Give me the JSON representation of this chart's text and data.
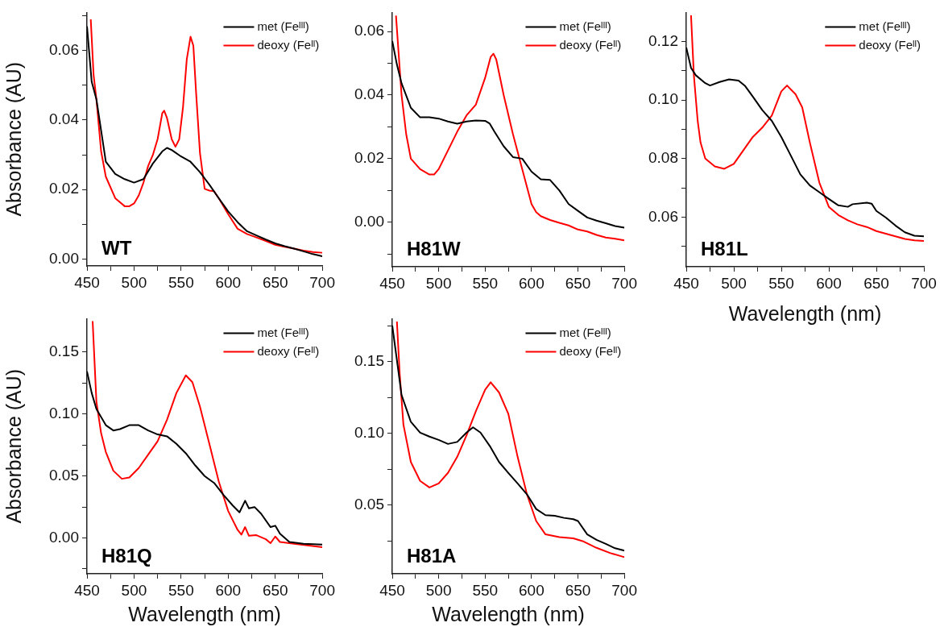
{
  "chart_data": [
    {
      "type": "line",
      "ylabel": "Absorbance (AU)",
      "annotations": [
        "WT"
      ],
      "legend": "top right",
      "xlim": [
        450,
        700
      ],
      "xticks": [
        450,
        {
          "value": 475,
          "label": null
        },
        500,
        {
          "value": 525,
          "label": null
        },
        550,
        {
          "value": 575,
          "label": null
        },
        600,
        {
          "value": 625,
          "label": null
        },
        650,
        {
          "value": 675,
          "label": null
        },
        700
      ],
      "ylim": [
        -0.002,
        0.071
      ],
      "yticks": [
        {
          "value": 0,
          "label": "0.00"
        },
        {
          "value": 0.01,
          "label": null
        },
        {
          "value": 0.02,
          "label": "0.02"
        },
        {
          "value": 0.03,
          "label": null
        },
        {
          "value": 0.04,
          "label": "0.04"
        },
        {
          "value": 0.05,
          "label": null
        },
        {
          "value": 0.06,
          "label": "0.06"
        },
        {
          "value": 0.07,
          "label": null
        }
      ],
      "series": [
        {
          "name": "met (Feᴵᴵᴵ)",
          "color": "#000000",
          "x": [
            450,
            455,
            460,
            470,
            480,
            490,
            500,
            510,
            520,
            530,
            535,
            540,
            550,
            560,
            570,
            580,
            590,
            600,
            610,
            620,
            630,
            640,
            650,
            660,
            670,
            680,
            690,
            700
          ],
          "values": [
            0.067,
            0.051,
            0.046,
            0.028,
            0.0245,
            0.023,
            0.022,
            0.023,
            0.0275,
            0.031,
            0.032,
            0.0314,
            0.0295,
            0.028,
            0.025,
            0.0214,
            0.0175,
            0.0137,
            0.0106,
            0.008,
            0.0068,
            0.0056,
            0.0045,
            0.0037,
            0.003,
            0.0022,
            0.0014,
            0.0008
          ]
        },
        {
          "name": "deoxy (Feᴵᴵ)",
          "color": "#ff0000",
          "x": [
            454,
            457,
            460,
            465,
            470,
            480,
            490,
            495,
            500,
            505,
            510,
            515,
            520,
            525,
            530,
            532,
            535,
            540,
            544,
            548,
            552,
            556,
            560,
            563,
            566,
            570,
            575,
            580,
            585,
            590,
            600,
            610,
            620,
            630,
            640,
            650,
            660,
            670,
            680,
            690,
            700
          ],
          "values": [
            0.069,
            0.053,
            0.046,
            0.031,
            0.0237,
            0.0175,
            0.0152,
            0.0152,
            0.016,
            0.0183,
            0.022,
            0.0268,
            0.03,
            0.0345,
            0.042,
            0.0427,
            0.0406,
            0.0345,
            0.0323,
            0.0345,
            0.0437,
            0.0575,
            0.064,
            0.0614,
            0.0475,
            0.0306,
            0.0202,
            0.0197,
            0.0195,
            0.0175,
            0.0129,
            0.0087,
            0.0072,
            0.0062,
            0.0052,
            0.0041,
            0.0035,
            0.003,
            0.0024,
            0.002,
            0.0018
          ]
        }
      ]
    },
    {
      "type": "line",
      "annotations": [
        "H81W"
      ],
      "legend": "top right",
      "xlim": [
        450,
        700
      ],
      "xticks": [
        450,
        {
          "value": 475,
          "label": null
        },
        500,
        {
          "value": 525,
          "label": null
        },
        550,
        {
          "value": 575,
          "label": null
        },
        600,
        {
          "value": 625,
          "label": null
        },
        650,
        {
          "value": 675,
          "label": null
        },
        700
      ],
      "ylim": [
        -0.014,
        0.066
      ],
      "yticks": [
        {
          "value": -0.01,
          "label": null
        },
        {
          "value": 0,
          "label": "0.00"
        },
        {
          "value": 0.01,
          "label": null
        },
        {
          "value": 0.02,
          "label": "0.02"
        },
        {
          "value": 0.03,
          "label": null
        },
        {
          "value": 0.04,
          "label": "0.04"
        },
        {
          "value": 0.05,
          "label": null
        },
        {
          "value": 0.06,
          "label": "0.06"
        }
      ],
      "series": [
        {
          "name": "met (Feᴵᴵᴵ)",
          "color": "#000000",
          "x": [
            450,
            455,
            460,
            470,
            480,
            490,
            500,
            510,
            520,
            530,
            540,
            550,
            555,
            560,
            570,
            580,
            590,
            600,
            610,
            620,
            630,
            640,
            650,
            660,
            670,
            680,
            690,
            700
          ],
          "values": [
            0.057,
            0.0496,
            0.0437,
            0.036,
            0.033,
            0.033,
            0.0326,
            0.0317,
            0.031,
            0.0317,
            0.032,
            0.0319,
            0.031,
            0.0285,
            0.0239,
            0.0205,
            0.02,
            0.0159,
            0.0135,
            0.0133,
            0.01,
            0.0057,
            0.0036,
            0.0015,
            0.0005,
            -0.0003,
            -0.0012,
            -0.0017
          ]
        },
        {
          "name": "deoxy (Feᴵᴵ)",
          "color": "#ff0000",
          "x": [
            454,
            460,
            465,
            470,
            480,
            490,
            495,
            500,
            510,
            520,
            530,
            540,
            550,
            556,
            559,
            562,
            570,
            580,
            590,
            600,
            605,
            610,
            620,
            630,
            640,
            650,
            660,
            670,
            680,
            690,
            700
          ],
          "values": [
            0.065,
            0.04,
            0.0277,
            0.02,
            0.0167,
            0.015,
            0.015,
            0.0167,
            0.0226,
            0.0285,
            0.0336,
            0.037,
            0.0454,
            0.052,
            0.053,
            0.0512,
            0.04,
            0.0277,
            0.0167,
            0.0057,
            0.0032,
            0.0019,
            0.0007,
            -0.0002,
            -0.001,
            -0.0023,
            -0.0029,
            -0.004,
            -0.0048,
            -0.0052,
            -0.0057
          ]
        }
      ]
    },
    {
      "type": "line",
      "xlabel": "Wavelength (nm)",
      "annotations": [
        "H81L"
      ],
      "legend": "top right",
      "xlim": [
        450,
        700
      ],
      "xticks": [
        450,
        {
          "value": 475,
          "label": null
        },
        500,
        {
          "value": 525,
          "label": null
        },
        550,
        {
          "value": 575,
          "label": null
        },
        600,
        {
          "value": 625,
          "label": null
        },
        650,
        {
          "value": 675,
          "label": null
        },
        700
      ],
      "ylim": [
        0.043,
        0.13
      ],
      "yticks": [
        {
          "value": 0.05,
          "label": null
        },
        {
          "value": 0.06,
          "label": "0.06"
        },
        {
          "value": 0.07,
          "label": null
        },
        {
          "value": 0.08,
          "label": "0.08"
        },
        {
          "value": 0.09,
          "label": null
        },
        {
          "value": 0.1,
          "label": "0.10"
        },
        {
          "value": 0.11,
          "label": null
        },
        {
          "value": 0.12,
          "label": "0.12"
        }
      ],
      "series": [
        {
          "name": "met (Feᴵᴵᴵ)",
          "color": "#000000",
          "x": [
            450,
            455,
            460,
            470,
            475,
            485,
            495,
            505,
            512,
            520,
            530,
            540,
            550,
            560,
            570,
            580,
            590,
            600,
            610,
            620,
            625,
            640,
            645,
            650,
            660,
            670,
            680,
            690,
            700
          ],
          "values": [
            0.118,
            0.111,
            0.1085,
            0.1058,
            0.105,
            0.1062,
            0.1071,
            0.1067,
            0.1048,
            0.1012,
            0.0966,
            0.0929,
            0.0874,
            0.081,
            0.0746,
            0.0708,
            0.0685,
            0.0662,
            0.064,
            0.0635,
            0.0644,
            0.0649,
            0.0646,
            0.0621,
            0.0598,
            0.0571,
            0.0548,
            0.0536,
            0.0534
          ]
        },
        {
          "name": "deoxy (Feᴵᴵ)",
          "color": "#ff0000",
          "x": [
            455,
            458,
            462,
            465,
            470,
            480,
            490,
            500,
            510,
            520,
            530,
            540,
            550,
            556,
            565,
            572,
            580,
            590,
            600,
            610,
            620,
            630,
            640,
            650,
            660,
            670,
            680,
            690,
            700
          ],
          "values": [
            0.129,
            0.1085,
            0.0929,
            0.0855,
            0.08,
            0.0773,
            0.0765,
            0.0782,
            0.0828,
            0.0874,
            0.0906,
            0.0947,
            0.103,
            0.105,
            0.102,
            0.0975,
            0.0855,
            0.0718,
            0.0635,
            0.0607,
            0.0589,
            0.0575,
            0.0566,
            0.0552,
            0.0543,
            0.0534,
            0.0525,
            0.052,
            0.0518
          ]
        }
      ]
    },
    {
      "type": "line",
      "xlabel": "Wavelength (nm)",
      "ylabel": "Absorbance (AU)",
      "annotations": [
        "H81Q"
      ],
      "legend": "top right",
      "xlim": [
        450,
        700
      ],
      "xticks": [
        450,
        {
          "value": 475,
          "label": null
        },
        500,
        {
          "value": 525,
          "label": null
        },
        550,
        {
          "value": 575,
          "label": null
        },
        600,
        {
          "value": 625,
          "label": null
        },
        650,
        {
          "value": 675,
          "label": null
        },
        700
      ],
      "ylim": [
        -0.029,
        0.177
      ],
      "yticks": [
        {
          "value": -0.025,
          "label": null
        },
        {
          "value": 0,
          "label": "0.00"
        },
        {
          "value": 0.025,
          "label": null
        },
        {
          "value": 0.05,
          "label": "0.05"
        },
        {
          "value": 0.075,
          "label": null
        },
        {
          "value": 0.1,
          "label": "0.10"
        },
        {
          "value": 0.125,
          "label": null
        },
        {
          "value": 0.15,
          "label": "0.15"
        }
      ],
      "series": [
        {
          "name": "met (Feᴵᴵᴵ)",
          "color": "#000000",
          "x": [
            450,
            455,
            460,
            470,
            478,
            485,
            495,
            505,
            515,
            525,
            535,
            545,
            555,
            565,
            575,
            585,
            595,
            605,
            612,
            618,
            622,
            628,
            635,
            645,
            650,
            655,
            665,
            680,
            700
          ],
          "values": [
            0.1344,
            0.117,
            0.104,
            0.091,
            0.0867,
            0.0878,
            0.091,
            0.091,
            0.0867,
            0.0835,
            0.082,
            0.0759,
            0.0683,
            0.0585,
            0.0499,
            0.0444,
            0.0347,
            0.026,
            0.0206,
            0.03,
            0.0239,
            0.0249,
            0.0195,
            0.0087,
            0.0098,
            0.0033,
            -0.0033,
            -0.0048,
            -0.0054
          ]
        },
        {
          "name": "deoxy (Feᴵᴵ)",
          "color": "#ff0000",
          "x": [
            456,
            460,
            465,
            470,
            478,
            487,
            495,
            505,
            515,
            525,
            535,
            545,
            555,
            562,
            570,
            580,
            590,
            600,
            610,
            614,
            618,
            622,
            630,
            640,
            645,
            650,
            655,
            670,
            700
          ],
          "values": [
            0.175,
            0.11,
            0.0845,
            0.0694,
            0.0542,
            0.0477,
            0.0488,
            0.0564,
            0.0672,
            0.078,
            0.0954,
            0.117,
            0.1312,
            0.1257,
            0.106,
            0.0759,
            0.0455,
            0.0217,
            0.0065,
            0.0026,
            0.0087,
            0.0017,
            0.0022,
            -0.0011,
            -0.0043,
            0.0011,
            -0.0033,
            -0.0048,
            -0.0076
          ]
        }
      ]
    },
    {
      "type": "line",
      "xlabel": "Wavelength (nm)",
      "annotations": [
        "H81A"
      ],
      "legend": "top right",
      "xlim": [
        450,
        700
      ],
      "xticks": [
        450,
        {
          "value": 475,
          "label": null
        },
        500,
        {
          "value": 525,
          "label": null
        },
        550,
        {
          "value": 575,
          "label": null
        },
        600,
        {
          "value": 625,
          "label": null
        },
        650,
        {
          "value": 675,
          "label": null
        },
        700
      ],
      "ylim": [
        0.002,
        0.18
      ],
      "yticks": [
        {
          "value": 0.025,
          "label": null
        },
        {
          "value": 0.05,
          "label": "0.05"
        },
        {
          "value": 0.075,
          "label": null
        },
        {
          "value": 0.1,
          "label": "0.10"
        },
        {
          "value": 0.125,
          "label": null
        },
        {
          "value": 0.15,
          "label": "0.15"
        },
        {
          "value": 0.175,
          "label": null
        }
      ],
      "series": [
        {
          "name": "met (Feᴵᴵᴵ)",
          "color": "#000000",
          "x": [
            450,
            455,
            460,
            470,
            480,
            490,
            500,
            510,
            520,
            530,
            537,
            545,
            555,
            565,
            575,
            585,
            595,
            605,
            615,
            625,
            635,
            645,
            650,
            660,
            670,
            680,
            690,
            700
          ],
          "values": [
            0.1752,
            0.151,
            0.1267,
            0.108,
            0.1005,
            0.0977,
            0.0954,
            0.0926,
            0.094,
            0.1005,
            0.1042,
            0.1005,
            0.0912,
            0.08,
            0.0724,
            0.065,
            0.0575,
            0.0472,
            0.0429,
            0.0425,
            0.041,
            0.0401,
            0.0388,
            0.0295,
            0.0257,
            0.0229,
            0.0198,
            0.0182
          ]
        },
        {
          "name": "deoxy (Feᴵᴵ)",
          "color": "#ff0000",
          "x": [
            455,
            458,
            462,
            470,
            480,
            490,
            500,
            510,
            520,
            530,
            540,
            550,
            556,
            565,
            575,
            585,
            595,
            605,
            615,
            630,
            645,
            655,
            670,
            685,
            700
          ],
          "values": [
            0.178,
            0.1416,
            0.1061,
            0.08,
            0.0668,
            0.0622,
            0.065,
            0.0724,
            0.0836,
            0.0986,
            0.1154,
            0.1304,
            0.1356,
            0.1285,
            0.1136,
            0.0836,
            0.0575,
            0.0388,
            0.0295,
            0.0276,
            0.0267,
            0.0248,
            0.0201,
            0.0164,
            0.0136
          ]
        }
      ]
    }
  ]
}
